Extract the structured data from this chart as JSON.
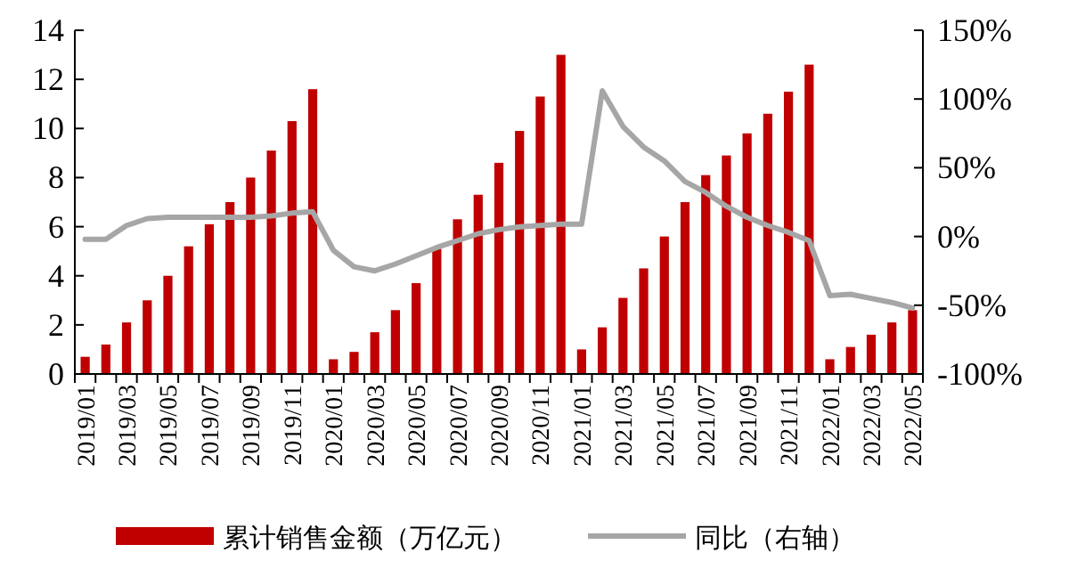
{
  "chart_data": {
    "type": "bar",
    "categories": [
      "2019/01",
      null,
      "2019/03",
      null,
      "2019/05",
      null,
      "2019/07",
      null,
      "2019/09",
      null,
      "2019/11",
      null,
      "2020/01",
      null,
      "2020/03",
      null,
      "2020/05",
      null,
      "2020/07",
      null,
      "2020/09",
      null,
      "2020/11",
      null,
      "2021/01",
      null,
      "2021/03",
      null,
      "2021/05",
      null,
      "2021/07",
      null,
      "2021/09",
      null,
      "2021/11",
      null,
      "2022/01",
      null,
      "2022/03",
      null,
      "2022/05"
    ],
    "series": [
      {
        "name": "累计销售金额（万亿元）",
        "color": "#c00000",
        "values": [
          0.7,
          1.2,
          2.1,
          3.0,
          4.0,
          5.2,
          6.1,
          7.0,
          8.0,
          9.1,
          10.3,
          11.6,
          0.6,
          0.9,
          1.7,
          2.6,
          3.7,
          5.1,
          6.3,
          7.3,
          8.6,
          9.9,
          11.3,
          13.0,
          1.0,
          1.9,
          3.1,
          4.3,
          5.6,
          7.0,
          8.1,
          8.9,
          9.8,
          10.6,
          11.5,
          12.6,
          0.6,
          1.1,
          1.6,
          2.1,
          2.6
        ]
      },
      {
        "name": "同比（右轴）",
        "type": "line",
        "axis": "y2",
        "color": "#a6a6a6",
        "values": [
          -2,
          -2,
          8,
          13,
          14,
          14,
          14,
          14,
          14,
          15,
          17,
          18,
          -10,
          -22,
          -25,
          -20,
          -14,
          -8,
          -3,
          2,
          5,
          7,
          8,
          9,
          9,
          106,
          80,
          65,
          55,
          40,
          32,
          22,
          14,
          8,
          3,
          -3,
          -43,
          -42,
          -45,
          -48,
          -52
        ]
      }
    ],
    "ylim": [
      0,
      14
    ],
    "yticks": [
      0,
      2,
      4,
      6,
      8,
      10,
      12,
      14
    ],
    "y2lim": [
      -100,
      150
    ],
    "y2ticks": [
      {
        "value": -100,
        "label": "-100%"
      },
      {
        "value": -50,
        "label": "-50%"
      },
      {
        "value": 0,
        "label": "0%"
      },
      {
        "value": 50,
        "label": "50%"
      },
      {
        "value": 100,
        "label": "100%"
      },
      {
        "value": 150,
        "label": "150%"
      }
    ],
    "legend": "bottom",
    "line_style": "solid",
    "marker": "none"
  }
}
